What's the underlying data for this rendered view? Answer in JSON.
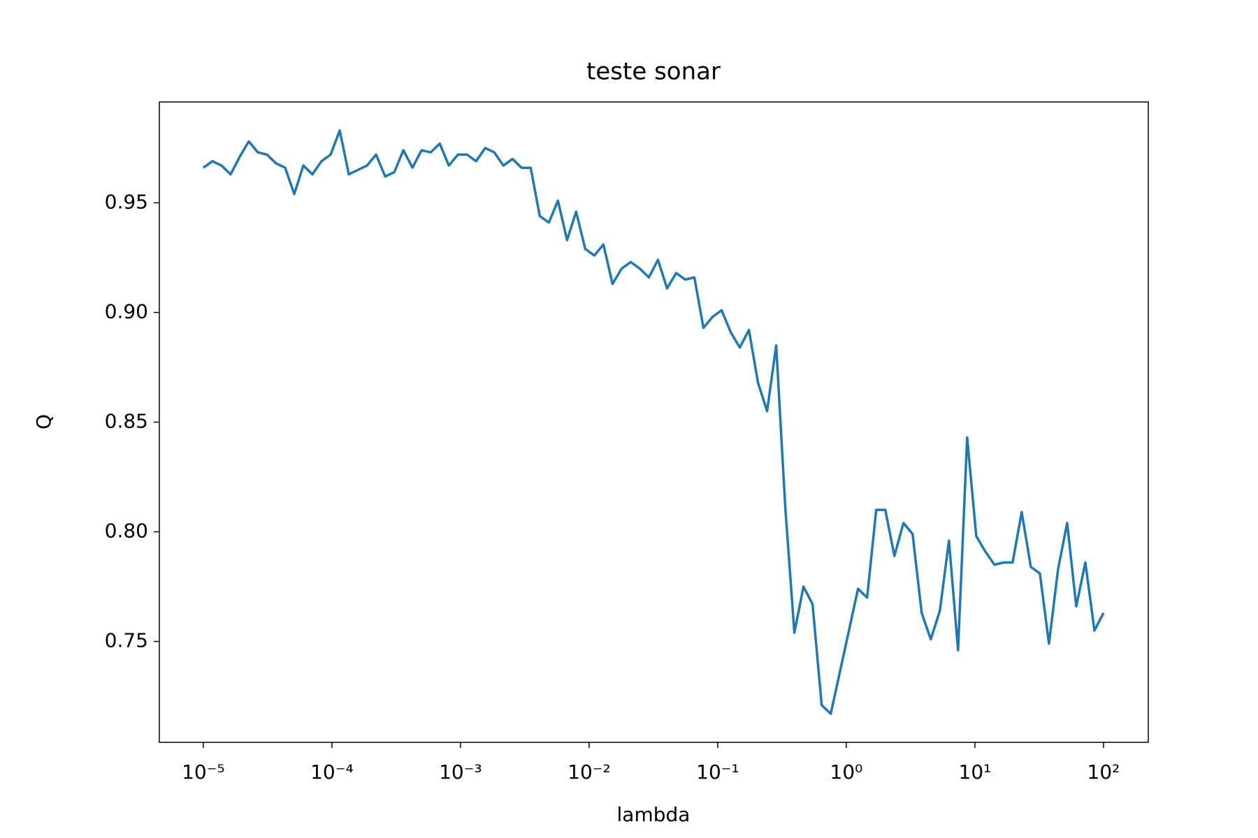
{
  "chart_data": {
    "type": "line",
    "title": "teste sonar",
    "x_label": "lambda",
    "y_label": "Q",
    "xscale": "log",
    "color": "#1f77b4",
    "x": [
      1e-05,
      1.177e-05,
      1.385e-05,
      1.63e-05,
      1.918e-05,
      2.257e-05,
      2.656e-05,
      3.126e-05,
      3.679e-05,
      4.329e-05,
      5.094e-05,
      5.995e-05,
      7.055e-05,
      8.302e-05,
      9.77e-05,
      0.000115,
      0.0001353,
      0.0001592,
      0.0001874,
      0.0002205,
      0.0002595,
      0.0003054,
      0.0003594,
      0.0004229,
      0.0004977,
      0.0005857,
      0.0006892,
      0.0008111,
      0.0009545,
      0.001123,
      0.001322,
      0.001556,
      0.001831,
      0.002154,
      0.002535,
      0.002984,
      0.003511,
      0.004132,
      0.004863,
      0.005722,
      0.006734,
      0.007925,
      0.009326,
      0.01097,
      0.01292,
      0.0152,
      0.01789,
      0.02105,
      0.02477,
      0.02915,
      0.0343,
      0.04037,
      0.04751,
      0.05591,
      0.06579,
      0.07743,
      0.09112,
      0.1072,
      0.1262,
      0.1485,
      0.1748,
      0.2057,
      0.242,
      0.2848,
      0.3352,
      0.3944,
      0.4642,
      0.5462,
      0.6428,
      0.7565,
      0.8902,
      1.048,
      1.233,
      1.451,
      1.707,
      2.009,
      2.364,
      2.783,
      3.275,
      3.854,
      4.535,
      5.337,
      6.28,
      7.391,
      8.697,
      10.24,
      12.05,
      14.18,
      16.68,
      19.63,
      23.1,
      27.19,
      31.99,
      37.65,
      44.31,
      52.14,
      61.36,
      72.21,
      84.98,
      100
    ],
    "values": [
      0.966,
      0.969,
      0.967,
      0.963,
      0.971,
      0.978,
      0.973,
      0.972,
      0.968,
      0.966,
      0.954,
      0.967,
      0.963,
      0.969,
      0.972,
      0.983,
      0.963,
      0.965,
      0.967,
      0.972,
      0.962,
      0.964,
      0.974,
      0.966,
      0.974,
      0.973,
      0.977,
      0.967,
      0.972,
      0.972,
      0.969,
      0.975,
      0.973,
      0.967,
      0.97,
      0.966,
      0.966,
      0.944,
      0.941,
      0.951,
      0.933,
      0.946,
      0.929,
      0.926,
      0.931,
      0.913,
      0.92,
      0.923,
      0.92,
      0.916,
      0.924,
      0.911,
      0.918,
      0.915,
      0.916,
      0.893,
      0.898,
      0.901,
      0.891,
      0.884,
      0.892,
      0.868,
      0.855,
      0.885,
      0.811,
      0.754,
      0.775,
      0.767,
      0.721,
      0.717,
      0.736,
      0.755,
      0.774,
      0.77,
      0.81,
      0.81,
      0.789,
      0.804,
      0.799,
      0.763,
      0.751,
      0.764,
      0.796,
      0.746,
      0.843,
      0.798,
      0.791,
      0.785,
      0.786,
      0.786,
      0.809,
      0.784,
      0.781,
      0.749,
      0.783,
      0.804,
      0.766,
      0.786,
      0.755,
      0.763
    ],
    "xlim": [
      4.55e-06,
      222.8
    ],
    "xticks": [
      {
        "value": 1e-05,
        "label": "10⁻⁵"
      },
      {
        "value": 0.0001,
        "label": "10⁻⁴"
      },
      {
        "value": 0.001,
        "label": "10⁻³"
      },
      {
        "value": 0.01,
        "label": "10⁻²"
      },
      {
        "value": 0.1,
        "label": "10⁻¹"
      },
      {
        "value": 1,
        "label": "10⁰"
      },
      {
        "value": 10,
        "label": "10¹"
      },
      {
        "value": 100,
        "label": "10²"
      }
    ],
    "ylim": [
      0.704,
      0.996
    ],
    "yticks": [
      0.75,
      {
        "value": 0.8,
        "label": "0.80"
      },
      0.85,
      {
        "value": 0.9,
        "label": "0.90"
      },
      0.95
    ],
    "grid": false
  }
}
